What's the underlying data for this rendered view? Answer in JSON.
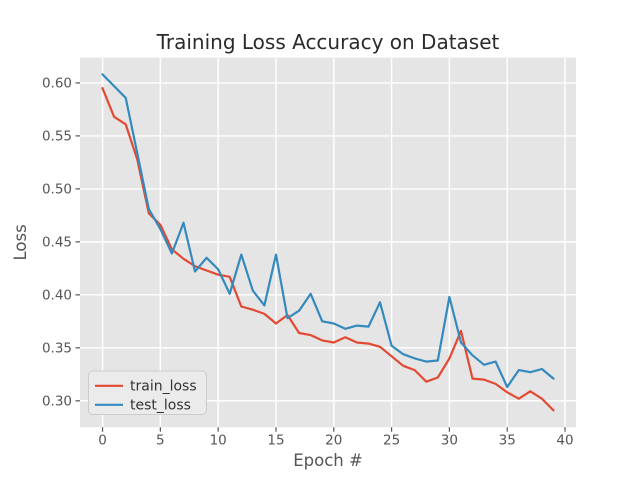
{
  "figure": {
    "background": "#ffffff",
    "plot_background": "#e5e5e5",
    "grid_color": "#ffffff",
    "tick_color": "#555555"
  },
  "chart_data": {
    "type": "line",
    "title": "Training Loss Accuracy on Dataset",
    "xlabel": "Epoch #",
    "ylabel": "Loss",
    "grid": true,
    "legend_position": "lower left",
    "x_ticks": [
      0,
      5,
      10,
      15,
      20,
      25,
      30,
      35,
      40
    ],
    "y_ticks": [
      "0.30",
      "0.35",
      "0.40",
      "0.45",
      "0.50",
      "0.55",
      "0.60"
    ],
    "xlim": [
      -1.95,
      40.95
    ],
    "ylim": [
      0.2751,
      0.6239
    ],
    "x": [
      0,
      1,
      2,
      3,
      4,
      5,
      6,
      7,
      8,
      9,
      10,
      11,
      12,
      13,
      14,
      15,
      16,
      17,
      18,
      19,
      20,
      21,
      22,
      23,
      24,
      25,
      26,
      27,
      28,
      29,
      30,
      31,
      32,
      33,
      34,
      35,
      36,
      37,
      38,
      39
    ],
    "series": [
      {
        "name": "train_loss",
        "color": "#E24A33",
        "values": [
          0.595,
          0.568,
          0.561,
          0.528,
          0.477,
          0.466,
          0.443,
          0.434,
          0.427,
          0.423,
          0.419,
          0.417,
          0.389,
          0.386,
          0.382,
          0.373,
          0.381,
          0.364,
          0.362,
          0.357,
          0.355,
          0.36,
          0.355,
          0.354,
          0.351,
          0.342,
          0.333,
          0.329,
          0.318,
          0.322,
          0.34,
          0.366,
          0.321,
          0.32,
          0.316,
          0.308,
          0.302,
          0.309,
          0.302,
          0.291
        ]
      },
      {
        "name": "test_loss",
        "color": "#348ABD",
        "values": [
          0.608,
          0.597,
          0.586,
          0.534,
          0.481,
          0.462,
          0.439,
          0.468,
          0.422,
          0.435,
          0.424,
          0.401,
          0.438,
          0.404,
          0.39,
          0.438,
          0.378,
          0.385,
          0.401,
          0.375,
          0.373,
          0.368,
          0.371,
          0.37,
          0.393,
          0.352,
          0.344,
          0.34,
          0.337,
          0.338,
          0.398,
          0.355,
          0.343,
          0.334,
          0.337,
          0.313,
          0.329,
          0.327,
          0.33,
          0.321
        ]
      }
    ]
  }
}
